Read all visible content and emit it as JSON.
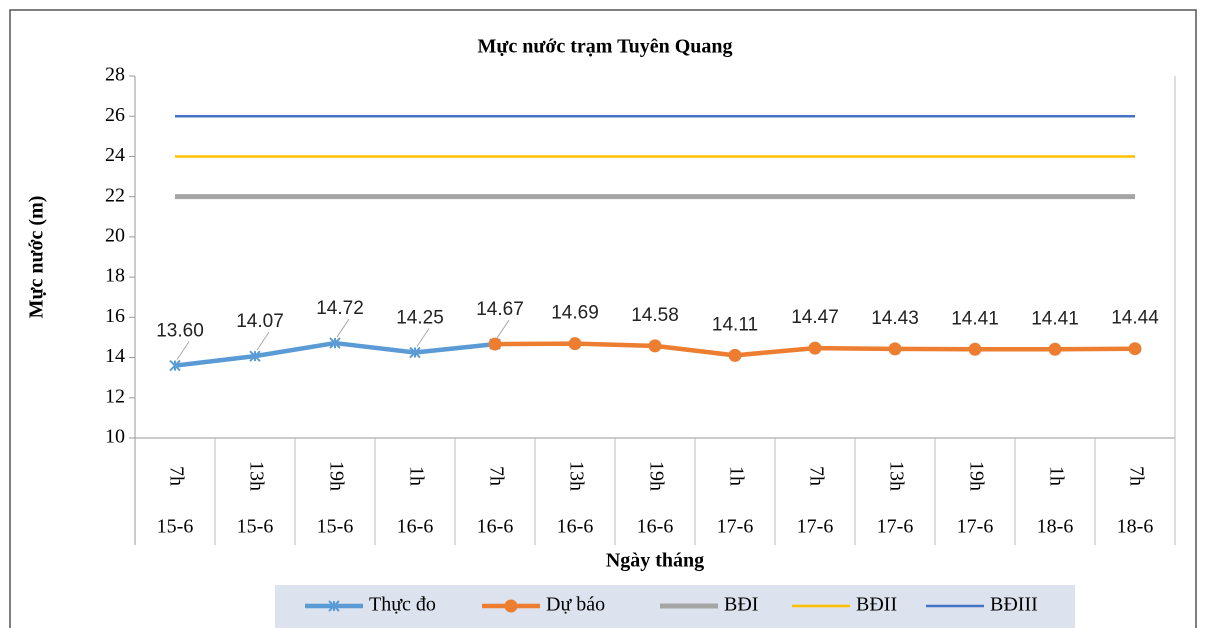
{
  "chart_data": {
    "type": "line",
    "title": "Mực nước trạm Tuyên Quang",
    "y_label": "Mực nước (m)",
    "x_label": "Ngày tháng",
    "categories": [
      "7h",
      "13h",
      "19h",
      "1h",
      "7h",
      "13h",
      "19h",
      "1h",
      "7h",
      "13h",
      "19h",
      "1h",
      "7h"
    ],
    "category_groups": [
      "15-6",
      "15-6",
      "15-6",
      "16-6",
      "16-6",
      "16-6",
      "16-6",
      "17-6",
      "17-6",
      "17-6",
      "17-6",
      "18-6",
      "18-6"
    ],
    "series": [
      {
        "name": "Thực đo",
        "color": "#5b9bd5",
        "marker": "star",
        "values": [
          13.6,
          14.07,
          14.72,
          14.25,
          14.67,
          null,
          null,
          null,
          null,
          null,
          null,
          null,
          null
        ],
        "value_labels": [
          "13.60",
          "14.07",
          "14.72",
          "14.25",
          "14.67",
          null,
          null,
          null,
          null,
          null,
          null,
          null,
          null
        ]
      },
      {
        "name": "Dự báo",
        "color": "#ed7d31",
        "marker": "circle",
        "values": [
          null,
          null,
          null,
          null,
          14.67,
          14.69,
          14.58,
          14.11,
          14.47,
          14.43,
          14.41,
          14.41,
          14.44
        ],
        "value_labels": [
          null,
          null,
          null,
          null,
          null,
          "14.69",
          "14.58",
          "14.11",
          "14.47",
          "14.43",
          "14.41",
          "14.41",
          "14.44"
        ]
      },
      {
        "name": "BĐI",
        "color": "#a5a5a5",
        "width": 5,
        "values": [
          22,
          22,
          22,
          22,
          22,
          22,
          22,
          22,
          22,
          22,
          22,
          22,
          22
        ]
      },
      {
        "name": "BĐII",
        "color": "#ffc000",
        "width": 2.5,
        "values": [
          24,
          24,
          24,
          24,
          24,
          24,
          24,
          24,
          24,
          24,
          24,
          24,
          24
        ]
      },
      {
        "name": "BĐIII",
        "color": "#4472c4",
        "width": 2.5,
        "values": [
          26,
          26,
          26,
          26,
          26,
          26,
          26,
          26,
          26,
          26,
          26,
          26,
          26
        ]
      }
    ],
    "ylim": [
      10,
      28
    ],
    "yticks": [
      10,
      12,
      14,
      16,
      18,
      20,
      22,
      24,
      26,
      28
    ],
    "grid": false,
    "legend": "bottom"
  }
}
